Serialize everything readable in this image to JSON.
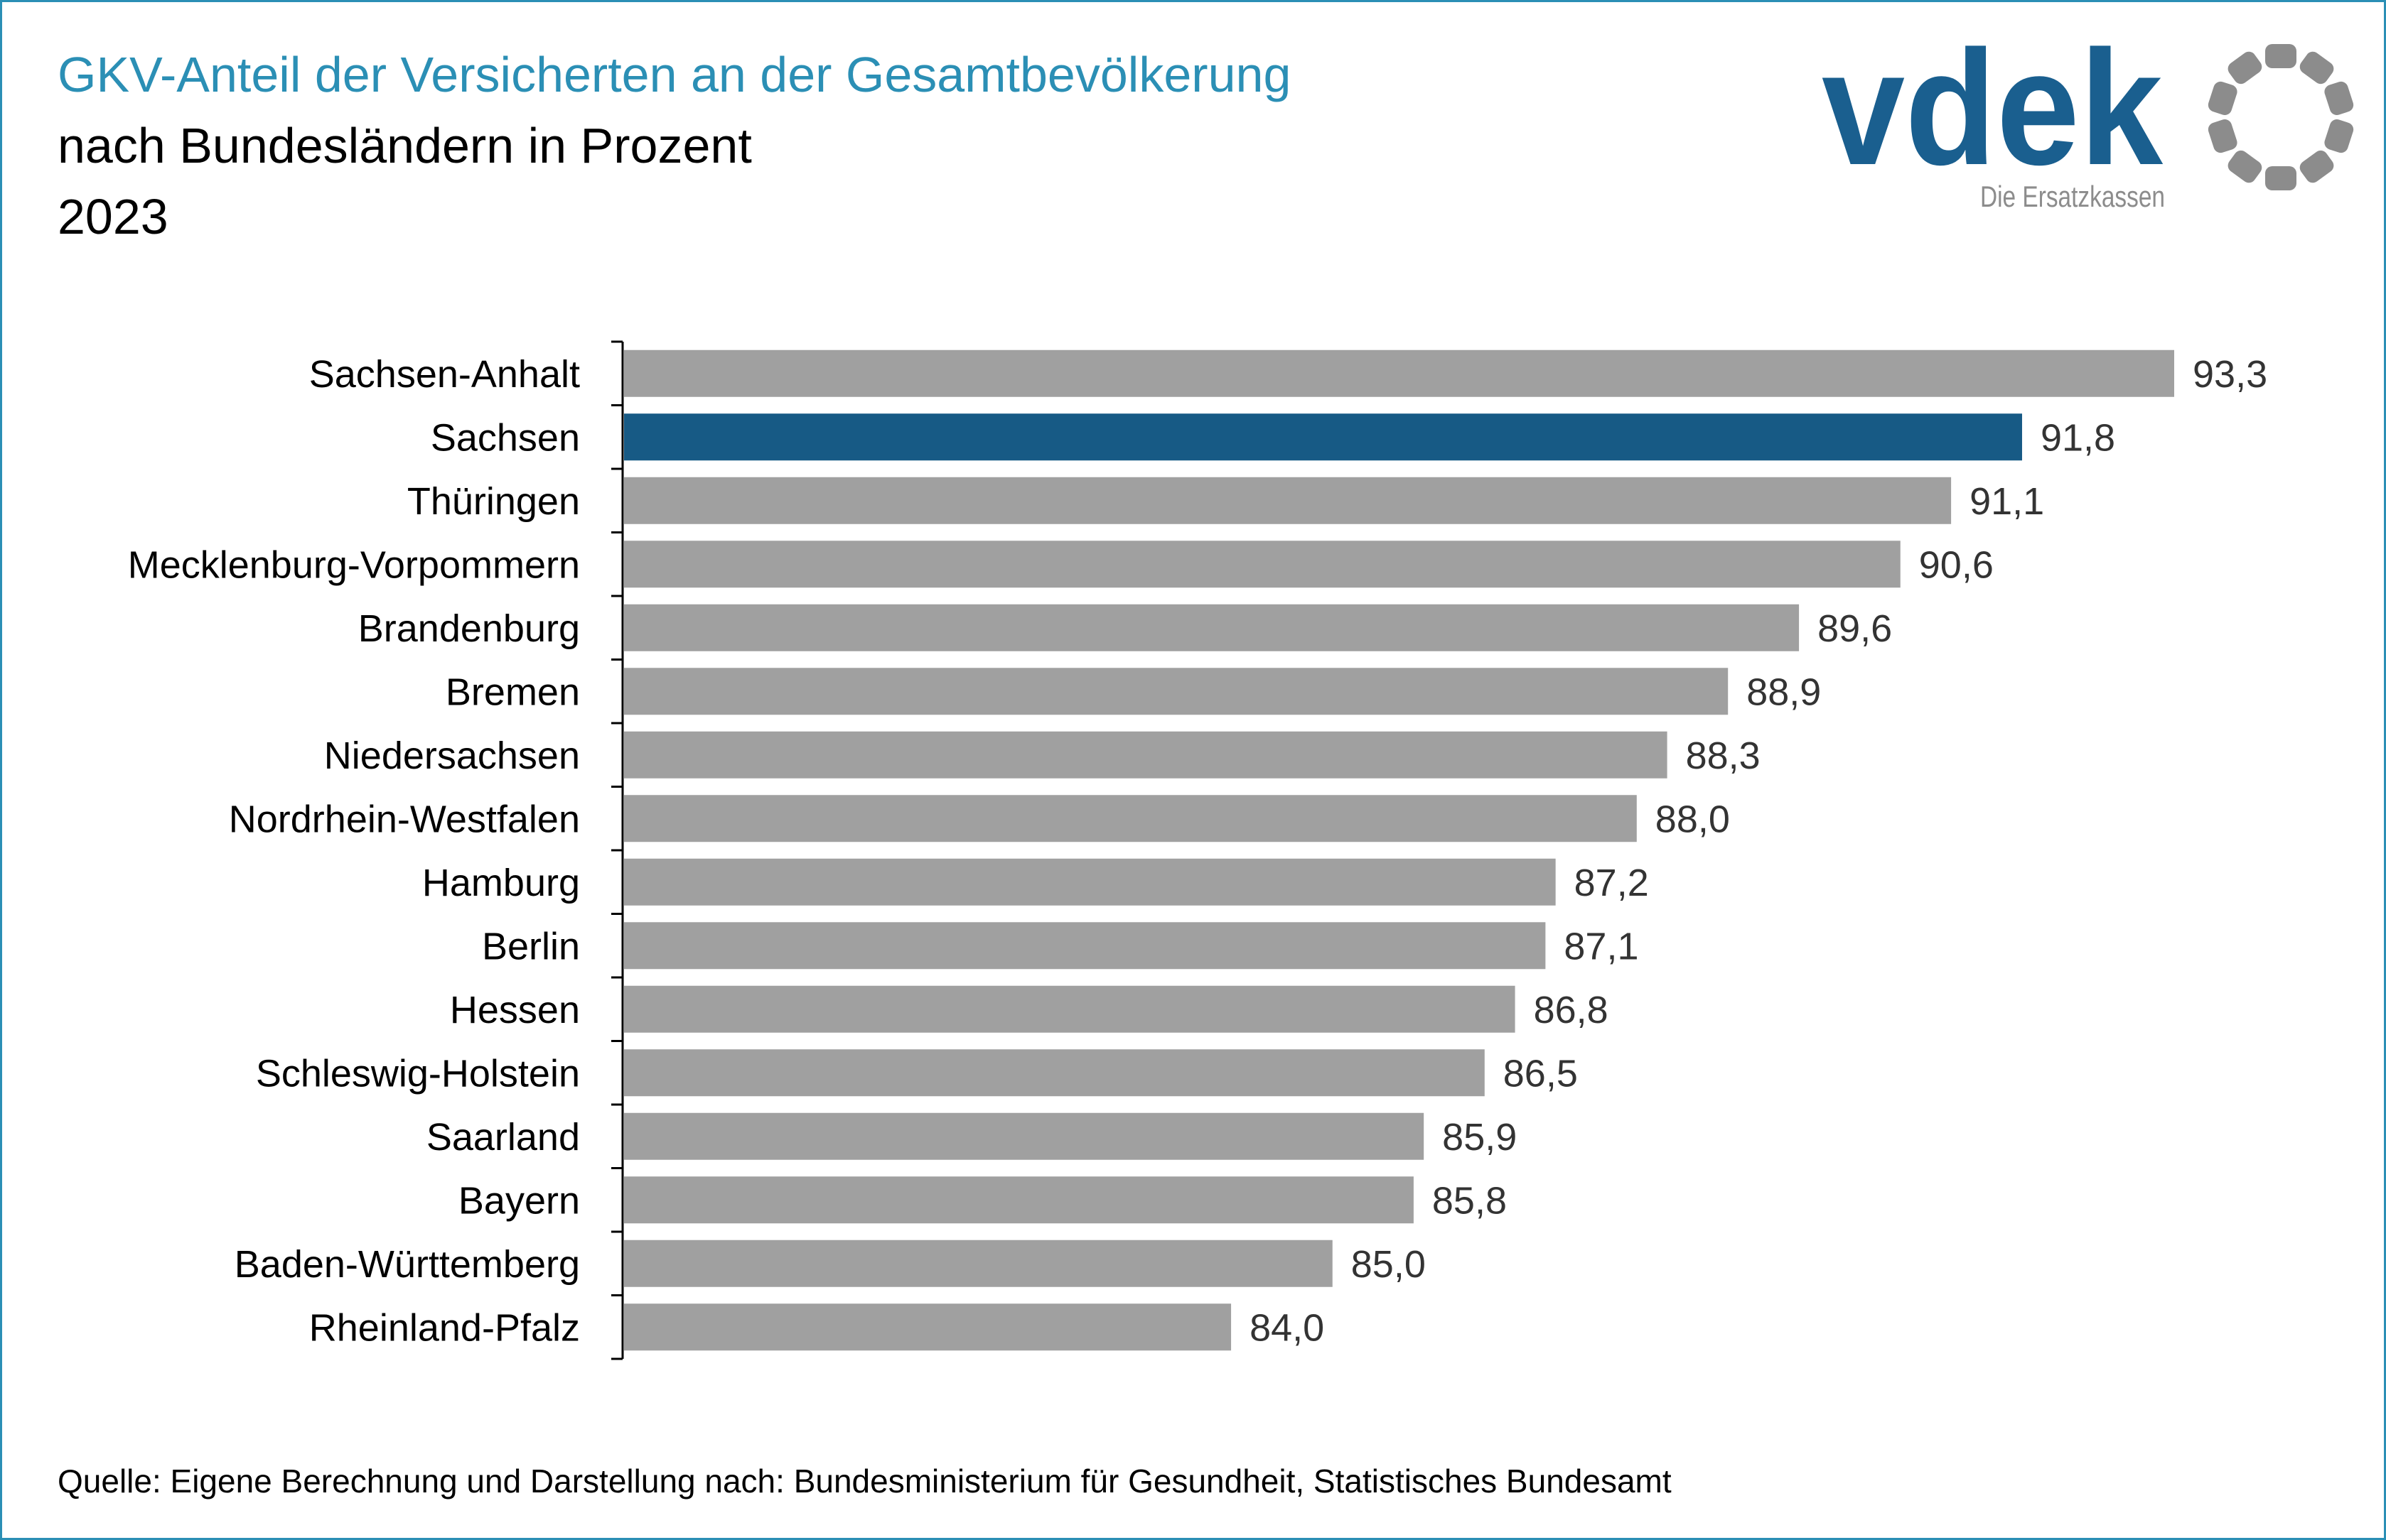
{
  "title": "GKV-Anteil der Versicherten an der Gesamtbevölkerung",
  "subtitle": "nach Bundesländern in Prozent",
  "year": "2023",
  "logo": {
    "wordmark": "vdek",
    "tagline": "Die Ersatzkassen",
    "color": "#1a5f8f",
    "ring_color": "#8c8c8c"
  },
  "source": "Quelle: Eigene Berechnung und Darstellung nach: Bundesministerium für Gesundheit, Statistisches Bundesamt",
  "colors": {
    "bar_default": "#a0a0a0",
    "bar_highlight": "#175a85",
    "title": "#2b8fb5"
  },
  "chart_data": {
    "type": "bar",
    "orientation": "horizontal",
    "categories": [
      "Sachsen-Anhalt",
      "Sachsen",
      "Thüringen",
      "Mecklenburg-Vorpommern",
      "Brandenburg",
      "Bremen",
      "Niedersachsen",
      "Nordrhein-Westfalen",
      "Hamburg",
      "Berlin",
      "Hessen",
      "Schleswig-Holstein",
      "Saarland",
      "Bayern",
      "Baden-Württemberg",
      "Rheinland-Pfalz"
    ],
    "values": [
      93.3,
      91.8,
      91.1,
      90.6,
      89.6,
      88.9,
      88.3,
      88.0,
      87.2,
      87.1,
      86.8,
      86.5,
      85.9,
      85.8,
      85.0,
      84.0
    ],
    "value_labels": [
      "93,3",
      "91,8",
      "91,1",
      "90,6",
      "89,6",
      "88,9",
      "88,3",
      "88,0",
      "87,2",
      "87,1",
      "86,8",
      "86,5",
      "85,9",
      "85,8",
      "85,0",
      "84,0"
    ],
    "highlight": "Sachsen",
    "xlim": [
      78,
      93.3
    ],
    "xaxis_visible": false,
    "grid": false,
    "legend": "none"
  }
}
